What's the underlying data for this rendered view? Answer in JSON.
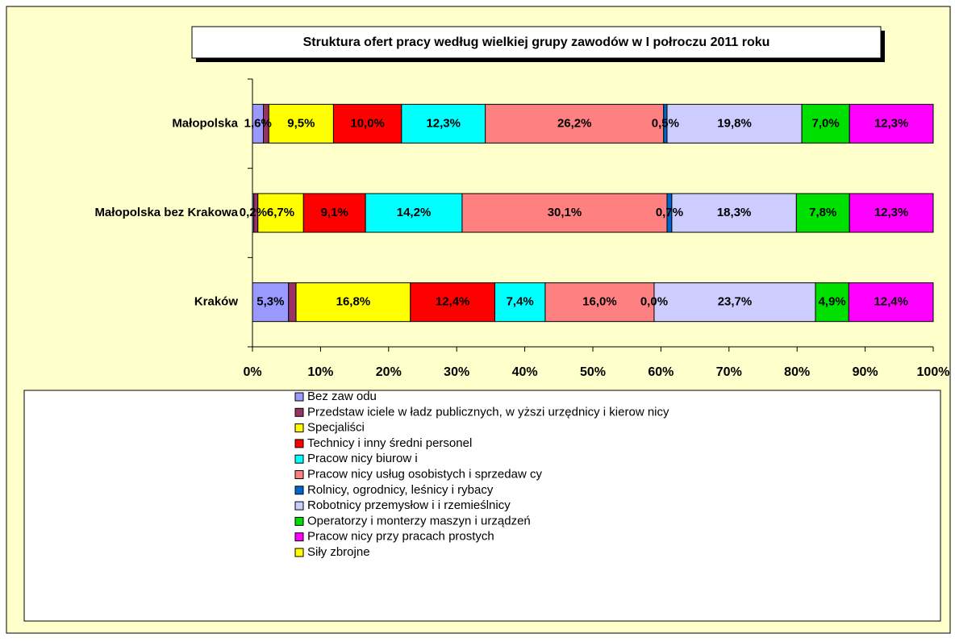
{
  "chart_data": {
    "type": "stacked_bar_horizontal",
    "title": "Struktura ofert pracy według wielkiej grupy zawodów w I połroczu 2011 roku",
    "categories": [
      "Małopolska",
      "Małopolska bez Krakowa",
      "Kraków"
    ],
    "xlim": [
      0,
      100
    ],
    "xticks": [
      {
        "value": 0,
        "label": "0%"
      },
      {
        "value": 10,
        "label": "10%"
      },
      {
        "value": 20,
        "label": "20%"
      },
      {
        "value": 30,
        "label": "30%"
      },
      {
        "value": 40,
        "label": "40%"
      },
      {
        "value": 50,
        "label": "50%"
      },
      {
        "value": 60,
        "label": "60%"
      },
      {
        "value": 70,
        "label": "70%"
      },
      {
        "value": 80,
        "label": "80%"
      },
      {
        "value": 90,
        "label": "90%"
      },
      {
        "value": 100,
        "label": "100%"
      }
    ],
    "legend": "bottom",
    "series": [
      {
        "name": "Bez zaw odu",
        "color": "#9999ff",
        "values": [
          1.6,
          0.2,
          5.3
        ],
        "value_labels": [
          "1,6%",
          "0,2%",
          "5,3%"
        ]
      },
      {
        "name": "Przedstaw iciele w ładz publicznych, w yższi urzędnicy i kierow nicy",
        "color": "#993366",
        "values": [
          0.8,
          0.6,
          1.1
        ],
        "value_labels": [
          null,
          null,
          null
        ]
      },
      {
        "name": "Specjaliści",
        "color": "#ffff00",
        "values": [
          9.5,
          6.7,
          16.8
        ],
        "value_labels": [
          "9,5%",
          "6,7%",
          "16,8%"
        ]
      },
      {
        "name": "Technicy i inny średni personel",
        "color": "#ff0000",
        "values": [
          10.0,
          9.1,
          12.4
        ],
        "value_labels": [
          "10,0%",
          "9,1%",
          "12,4%"
        ]
      },
      {
        "name": "Pracow nicy biurow i",
        "color": "#00ffff",
        "values": [
          12.3,
          14.2,
          7.4
        ],
        "value_labels": [
          "12,3%",
          "14,2%",
          "7,4%"
        ]
      },
      {
        "name": "Pracow nicy usług osobistych i sprzedaw cy",
        "color": "#ff8080",
        "values": [
          26.2,
          30.1,
          16.0
        ],
        "value_labels": [
          "26,2%",
          "30,1%",
          "16,0%"
        ]
      },
      {
        "name": "Rolnicy, ogrodnicy, leśnicy i rybacy",
        "color": "#0066cc",
        "values": [
          0.5,
          0.7,
          0.0
        ],
        "value_labels": [
          "0,5%",
          "0,7%",
          "0,0%"
        ]
      },
      {
        "name": "Robotnicy przemysłow i i rzemieślnicy",
        "color": "#ccccff",
        "values": [
          19.8,
          18.3,
          23.7
        ],
        "value_labels": [
          "19,8%",
          "18,3%",
          "23,7%"
        ]
      },
      {
        "name": "Operatorzy i monterzy maszyn i urządzeń",
        "color": "#00e000",
        "values": [
          7.0,
          7.8,
          4.9
        ],
        "value_labels": [
          "7,0%",
          "7,8%",
          "4,9%"
        ]
      },
      {
        "name": "Pracow nicy przy pracach prostych",
        "color": "#ff00ff",
        "values": [
          12.3,
          12.3,
          12.4
        ],
        "value_labels": [
          "12,3%",
          "12,3%",
          "12,4%"
        ]
      },
      {
        "name": "Siły zbrojne",
        "color": "#ffff00",
        "values": [
          0,
          0,
          0
        ],
        "value_labels": [
          null,
          null,
          null
        ]
      }
    ]
  }
}
